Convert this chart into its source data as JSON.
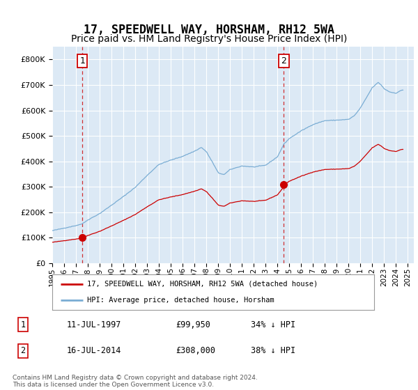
{
  "title": "17, SPEEDWELL WAY, HORSHAM, RH12 5WA",
  "subtitle": "Price paid vs. HM Land Registry's House Price Index (HPI)",
  "title_fontsize": 12,
  "subtitle_fontsize": 10,
  "background_color": "#ffffff",
  "plot_bg_color": "#dce9f5",
  "grid_color": "#ffffff",
  "red_color": "#cc0000",
  "blue_color": "#7aadd4",
  "dashed_color": "#cc0000",
  "purchase1_date": 1997.538,
  "purchase1_price": 99950,
  "purchase1_label": "1",
  "purchase2_date": 2014.538,
  "purchase2_price": 308000,
  "purchase2_label": "2",
  "footer_text": "Contains HM Land Registry data © Crown copyright and database right 2024.\nThis data is licensed under the Open Government Licence v3.0.",
  "legend_entry1": "17, SPEEDWELL WAY, HORSHAM, RH12 5WA (detached house)",
  "legend_entry2": "HPI: Average price, detached house, Horsham",
  "table_row1": [
    "1",
    "11-JUL-1997",
    "£99,950",
    "34% ↓ HPI"
  ],
  "table_row2": [
    "2",
    "16-JUL-2014",
    "£308,000",
    "38% ↓ HPI"
  ],
  "ylim": [
    0,
    850000
  ],
  "xlim_start": 1995.0,
  "xlim_end": 2025.5
}
